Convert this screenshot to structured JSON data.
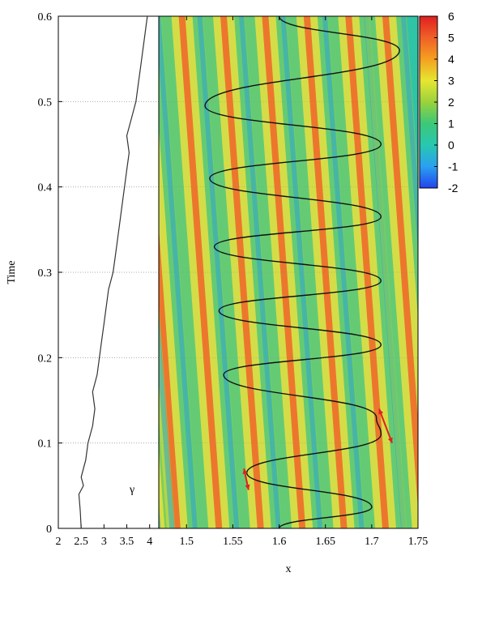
{
  "chart_data": [
    {
      "type": "line",
      "panel": "left",
      "annotation": "γ",
      "ylabel": "Time",
      "xlim": [
        2,
        4.2
      ],
      "ylim": [
        0,
        0.6
      ],
      "xticks": [
        "2",
        "2.5",
        "3",
        "3.5",
        "4"
      ],
      "yticks": [
        "0",
        "0.1",
        "0.2",
        "0.3",
        "0.4",
        "0.5",
        "0.6"
      ],
      "grid": "horizontal dotted",
      "series": [
        {
          "t": [
            0,
            0.02,
            0.04,
            0.05,
            0.06,
            0.08,
            0.1,
            0.12,
            0.14,
            0.16,
            0.18,
            0.2,
            0.22,
            0.24,
            0.26,
            0.28,
            0.3,
            0.32,
            0.34,
            0.36,
            0.38,
            0.4,
            0.42,
            0.44,
            0.46,
            0.48,
            0.5,
            0.52,
            0.54,
            0.56,
            0.58,
            0.6
          ],
          "gamma": [
            2.5,
            2.48,
            2.45,
            2.55,
            2.5,
            2.6,
            2.65,
            2.75,
            2.8,
            2.75,
            2.85,
            2.9,
            2.95,
            3.0,
            3.05,
            3.1,
            3.2,
            3.25,
            3.3,
            3.35,
            3.4,
            3.45,
            3.5,
            3.55,
            3.5,
            3.6,
            3.7,
            3.75,
            3.8,
            3.85,
            3.9,
            3.95
          ]
        }
      ]
    },
    {
      "type": "heatmap",
      "panel": "right",
      "xlabel": "x",
      "xlim": [
        1.47,
        1.75
      ],
      "ylim": [
        0,
        0.6
      ],
      "xticks": [
        "1.5",
        "1.55",
        "1.6",
        "1.65",
        "1.7",
        "1.75"
      ],
      "colorbar": {
        "min": -2,
        "max": 6,
        "ticks": [
          "6",
          "5",
          "4",
          "3",
          "2",
          "1",
          "0",
          "-1",
          "-2"
        ],
        "colors": [
          "#2244ee",
          "#2aa0f0",
          "#28c8b0",
          "#3cc878",
          "#9ad23c",
          "#e6e632",
          "#f5a020",
          "#f06028",
          "#e02020"
        ]
      },
      "stripes": {
        "count": 9,
        "x_at_t0": [
          1.49,
          1.535,
          1.58,
          1.625,
          1.67,
          1.715,
          1.755,
          1.465,
          1.45
        ],
        "drift_per_0_6": -0.04
      },
      "trajectory": {
        "t": [
          0.0,
          0.025,
          0.065,
          0.11,
          0.13,
          0.18,
          0.215,
          0.255,
          0.29,
          0.33,
          0.365,
          0.41,
          0.45,
          0.495,
          0.56,
          0.6
        ],
        "x": [
          1.6,
          1.7,
          1.565,
          1.71,
          1.705,
          1.54,
          1.71,
          1.535,
          1.71,
          1.53,
          1.71,
          1.525,
          1.71,
          1.52,
          1.73,
          1.6
        ]
      },
      "markers": [
        "red double arrow near x=1.565, t=0.06",
        "red double arrow near x=1.715, t=0.12"
      ]
    }
  ]
}
